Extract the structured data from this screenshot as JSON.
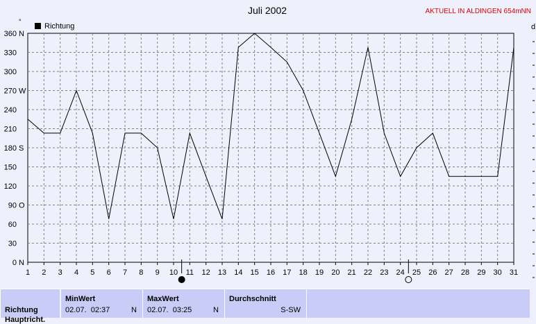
{
  "station_label": "AKTUELL IN ALDINGEN 654mNN",
  "right_edge_label": "d",
  "chart_data": {
    "type": "line",
    "title": "Juli 2002",
    "legend": {
      "label": "Richtung",
      "placement": "top-left"
    },
    "x": [
      1,
      2,
      3,
      4,
      5,
      6,
      7,
      8,
      9,
      10,
      11,
      12,
      13,
      14,
      15,
      16,
      17,
      18,
      19,
      20,
      21,
      22,
      23,
      24,
      25,
      26,
      27,
      28,
      29,
      30,
      31
    ],
    "y_ticks": [
      {
        "value": 0,
        "label": "0",
        "dir": "N"
      },
      {
        "value": 30,
        "label": "30",
        "dir": ""
      },
      {
        "value": 60,
        "label": "60",
        "dir": ""
      },
      {
        "value": 90,
        "label": "90",
        "dir": "O"
      },
      {
        "value": 120,
        "label": "120",
        "dir": ""
      },
      {
        "value": 150,
        "label": "150",
        "dir": ""
      },
      {
        "value": 180,
        "label": "180",
        "dir": "S"
      },
      {
        "value": 210,
        "label": "210",
        "dir": ""
      },
      {
        "value": 240,
        "label": "240",
        "dir": ""
      },
      {
        "value": 270,
        "label": "270",
        "dir": "W"
      },
      {
        "value": 300,
        "label": "300",
        "dir": ""
      },
      {
        "value": 330,
        "label": "330",
        "dir": ""
      },
      {
        "value": 360,
        "label": "360",
        "dir": "N"
      }
    ],
    "ylim": [
      0,
      360
    ],
    "xlim": [
      1,
      31
    ],
    "grid": true,
    "series": [
      {
        "name": "Richtung",
        "values": [
          225,
          203,
          203,
          270,
          203,
          68,
          203,
          203,
          180,
          68,
          203,
          135,
          68,
          338,
          360,
          338,
          315,
          270,
          203,
          135,
          225,
          338,
          203,
          135,
          180,
          203,
          135,
          135,
          135,
          135,
          338
        ]
      }
    ],
    "markers": [
      {
        "x": 10.5,
        "kind": "new-moon"
      },
      {
        "x": 24.5,
        "kind": "full-moon"
      }
    ]
  },
  "footer": {
    "row_label": "Richtung",
    "row_label_2": "Hauptricht.",
    "min": {
      "header": "MinWert",
      "date": "02.07.",
      "time": "02:37",
      "dir": "N"
    },
    "max": {
      "header": "MaxWert",
      "date": "02.07.",
      "time": "03:25",
      "dir": "N"
    },
    "avg": {
      "header": "Durchschnitt",
      "value": "S-SW"
    }
  },
  "colors": {
    "background": "#eef0fb",
    "grid": "#808080",
    "line": "#000000",
    "station": "#e00000",
    "footer_cell": "#c8ccf6"
  }
}
